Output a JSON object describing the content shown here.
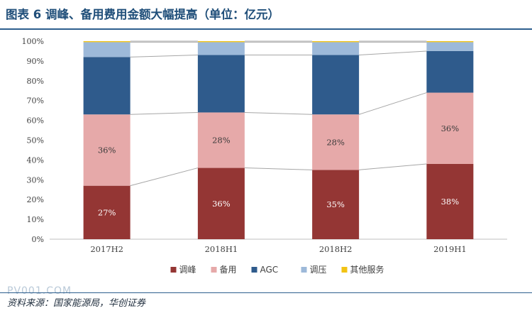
{
  "header": {
    "title": "图表 6  调峰、备用费用金额大幅提高（单位：亿元）"
  },
  "footer": {
    "watermark": "PV001.COM",
    "source": "资料来源：国家能源局，华创证券"
  },
  "chart_data": {
    "type": "bar",
    "stacked": "percent",
    "categories": [
      "2017H2",
      "2018H1",
      "2018H2",
      "2019H1"
    ],
    "series": [
      {
        "name": "调峰",
        "values": [
          27,
          36,
          35,
          38
        ],
        "labels": [
          "27%",
          "36%",
          "35%",
          "38%"
        ],
        "color": "#943634"
      },
      {
        "name": "备用",
        "values": [
          36,
          28,
          28,
          36
        ],
        "labels": [
          "36%",
          "28%",
          "28%",
          "36%"
        ],
        "color": "#e6a9a9"
      },
      {
        "name": "AGC",
        "values": [
          29,
          29,
          30,
          21
        ],
        "labels": [
          "",
          "",
          "",
          ""
        ],
        "color": "#2f5b8c"
      },
      {
        "name": "调压",
        "values": [
          7.5,
          6.5,
          6.5,
          4.5
        ],
        "labels": [
          "",
          "",
          "",
          ""
        ],
        "color": "#9db9d9"
      },
      {
        "name": "其他服务",
        "values": [
          0.5,
          0.5,
          0.5,
          0.5
        ],
        "labels": [
          "",
          "",
          "",
          ""
        ],
        "color": "#f2c314"
      }
    ],
    "yticks": [
      "0%",
      "10%",
      "20%",
      "30%",
      "40%",
      "50%",
      "60%",
      "70%",
      "80%",
      "90%",
      "100%"
    ],
    "ylim": [
      0,
      100
    ],
    "grid": false,
    "legend": "bottom",
    "connector_lines": true
  }
}
